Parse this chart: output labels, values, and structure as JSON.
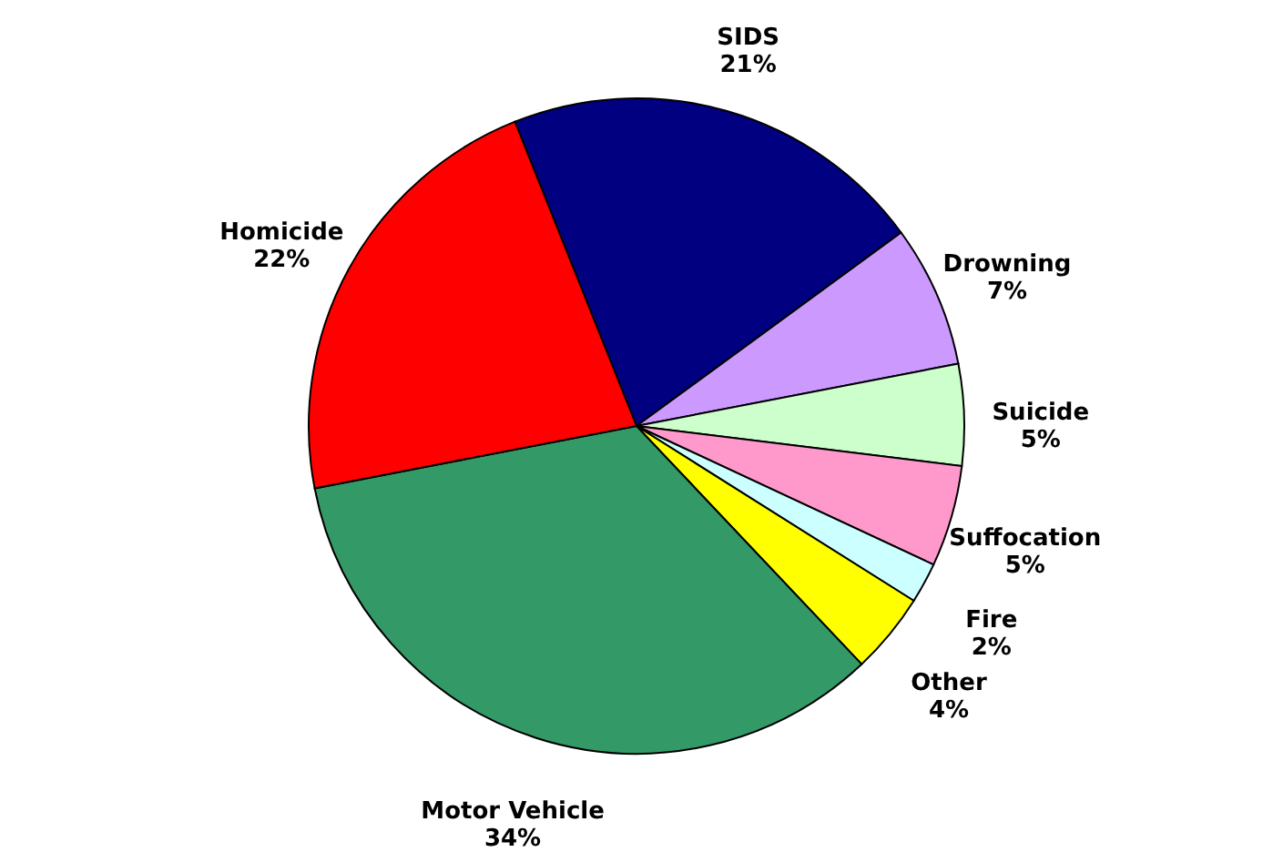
{
  "chart_data": {
    "type": "pie",
    "categories": [
      "SIDS",
      "Drowning",
      "Suicide",
      "Suffocation",
      "Fire",
      "Other",
      "Motor Vehicle",
      "Homicide"
    ],
    "values": [
      21,
      7,
      5,
      5,
      2,
      4,
      34,
      22
    ],
    "value_labels": [
      "21%",
      "7%",
      "5%",
      "5%",
      "2%",
      "4%",
      "34%",
      "22%"
    ],
    "colors": [
      "#000080",
      "#cc99ff",
      "#ccffcc",
      "#ff99cc",
      "#ccffff",
      "#ffff00",
      "#339966",
      "#ff0000"
    ]
  }
}
